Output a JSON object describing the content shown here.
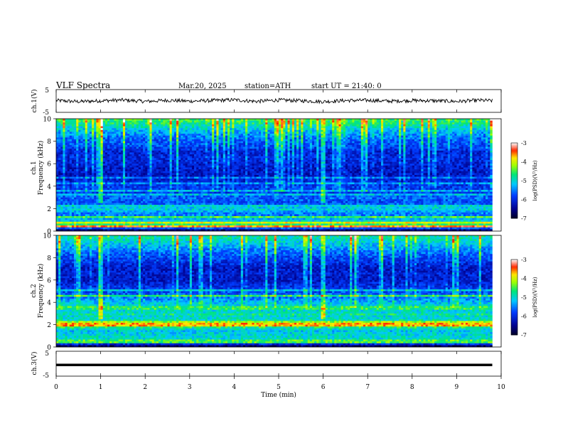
{
  "header": {
    "title": "VLF  Spectra",
    "date": "Mar.20, 2025",
    "station": "station=ATH",
    "start_ut": "start  UT  =   21:40: 0"
  },
  "colorbar_label": "log(PSD)(V²/Hz)",
  "chart_data": [
    {
      "type": "line",
      "name": "ch1-waveform",
      "ylabel": "ch.1(V)",
      "xlim": [
        0,
        10
      ],
      "ylim": [
        -5,
        5
      ],
      "y_ticks": [
        "5",
        "-5"
      ],
      "x_data_range": [
        0,
        9.8
      ],
      "x": [
        0,
        0.5,
        1.0,
        1.5,
        2.0,
        2.5,
        3.0,
        3.5,
        4.0,
        4.5,
        5.0,
        5.5,
        6.0,
        6.5,
        7.0,
        7.5,
        8.0,
        8.5,
        9.0,
        9.5,
        9.8
      ],
      "values": [
        0.2,
        -0.3,
        0.1,
        0.4,
        -0.2,
        0.3,
        -0.1,
        0.2,
        0.5,
        -0.2,
        0.4,
        0.1,
        -0.3,
        0.2,
        0.3,
        -0.1,
        0.2,
        0.1,
        -0.2,
        0.3,
        0.1
      ]
    },
    {
      "type": "heatmap",
      "name": "ch1-spectrogram",
      "ylabel": "ch.1\nFrequency (kHz)",
      "xlim": [
        0,
        10
      ],
      "ylim": [
        0,
        10
      ],
      "y_ticks": [
        "0",
        "2",
        "4",
        "6",
        "8",
        "10"
      ],
      "x_data_range": [
        0,
        9.8
      ],
      "color_scale": {
        "min": -7,
        "max": -3,
        "ticks": [
          "-3",
          "-4",
          "-5",
          "-6",
          "-7"
        ]
      },
      "profile_khz": [
        0,
        0.5,
        1.0,
        1.5,
        2.0,
        2.5,
        3.0,
        3.5,
        4.0,
        4.5,
        5.0,
        5.5,
        6.0,
        6.5,
        7.0,
        7.5,
        8.0,
        8.5,
        9.0,
        9.5,
        10.0
      ],
      "profile_log_psd": [
        -7.0,
        -4.5,
        -5.2,
        -5.6,
        -5.0,
        -5.8,
        -5.6,
        -5.9,
        -5.9,
        -6.1,
        -6.2,
        -6.2,
        -6.1,
        -6.0,
        -6.1,
        -5.8,
        -5.7,
        -5.5,
        -5.2,
        -4.8,
        -4.5
      ],
      "lines_khz": [
        {
          "f": 0.45,
          "log_psd": -3.5
        },
        {
          "f": 0.7,
          "log_psd": -4.0
        },
        {
          "f": 1.2,
          "log_psd": -4.5
        },
        {
          "f": 2.2,
          "log_psd": -5.0
        },
        {
          "f": 3.2,
          "log_psd": -5.2
        },
        {
          "f": 3.6,
          "log_psd": -5.3
        },
        {
          "f": 4.2,
          "log_psd": -5.5
        },
        {
          "f": 4.8,
          "log_psd": -5.6
        }
      ],
      "events_min": [
        1.0,
        6.0
      ]
    },
    {
      "type": "heatmap",
      "name": "ch2-spectrogram",
      "ylabel": "ch.2\nFrequency (kHz)",
      "xlim": [
        0,
        10
      ],
      "ylim": [
        0,
        10
      ],
      "y_ticks": [
        "0",
        "2",
        "4",
        "6",
        "8",
        "10"
      ],
      "x_data_range": [
        0,
        9.8
      ],
      "color_scale": {
        "min": -7,
        "max": -3,
        "ticks": [
          "-3",
          "-4",
          "-5",
          "-6",
          "-7"
        ]
      },
      "profile_khz": [
        0,
        0.5,
        1.0,
        1.5,
        2.0,
        2.5,
        3.0,
        3.5,
        4.0,
        4.5,
        5.0,
        5.5,
        6.0,
        6.5,
        7.0,
        7.5,
        8.0,
        8.5,
        9.0,
        9.5,
        10.0
      ],
      "profile_log_psd": [
        -7.0,
        -5.0,
        -5.0,
        -5.2,
        -4.2,
        -5.0,
        -5.0,
        -5.0,
        -5.2,
        -5.6,
        -5.8,
        -6.0,
        -6.2,
        -6.1,
        -6.2,
        -6.0,
        -5.8,
        -5.6,
        -5.3,
        -5.0,
        -4.8
      ],
      "lines_khz": [
        {
          "f": 0.5,
          "log_psd": -4.5
        },
        {
          "f": 1.6,
          "log_psd": -5.0
        },
        {
          "f": 2.0,
          "log_psd": -3.7
        },
        {
          "f": 2.2,
          "log_psd": -4.2
        },
        {
          "f": 2.9,
          "log_psd": -4.8
        },
        {
          "f": 3.5,
          "log_psd": -4.6
        },
        {
          "f": 4.6,
          "log_psd": -4.6
        },
        {
          "f": 5.1,
          "log_psd": -5.2
        }
      ],
      "events_min": [
        1.0,
        6.0
      ]
    },
    {
      "type": "line",
      "name": "ch3-waveform",
      "ylabel": "ch.3(V)",
      "xlabel": "Time  (min)",
      "xlim": [
        0,
        10
      ],
      "ylim": [
        -5,
        5
      ],
      "y_ticks": [
        "5",
        "-5"
      ],
      "x_ticks": [
        "0",
        "1",
        "2",
        "3",
        "4",
        "5",
        "6",
        "7",
        "8",
        "9",
        "10"
      ],
      "x_data_range": [
        0,
        9.8
      ],
      "x": [
        0,
        9.8
      ],
      "values": [
        -0.5,
        -0.5
      ]
    }
  ]
}
